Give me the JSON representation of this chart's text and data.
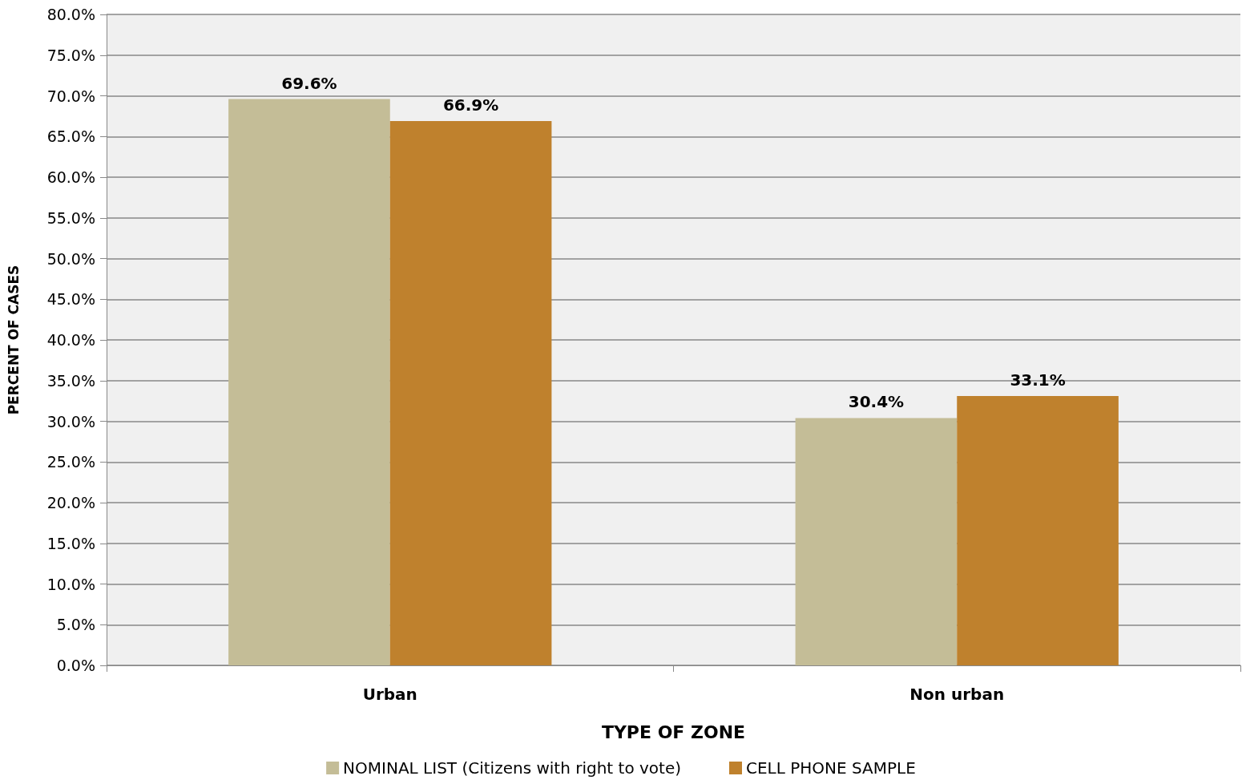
{
  "chart_data": {
    "type": "bar",
    "xlabel": "TYPE OF ZONE",
    "ylabel": "PERCENT OF CASES",
    "categories": [
      "Urban",
      "Non urban"
    ],
    "series": [
      {
        "name": "NOMINAL LIST (Citizens with right to vote)",
        "color": "#c4bd97",
        "values": [
          69.6,
          30.4
        ],
        "value_labels": [
          "69.6%",
          "30.4%"
        ]
      },
      {
        "name": "CELL PHONE SAMPLE",
        "color": "#bf812d",
        "values": [
          66.9,
          33.1
        ],
        "value_labels": [
          "66.9%",
          "33.1%"
        ]
      }
    ],
    "ylim": [
      0,
      80
    ],
    "yticks": [
      {
        "value": 0,
        "label": "0.0%"
      },
      {
        "value": 5,
        "label": "5.0%"
      },
      {
        "value": 10,
        "label": "10.0%"
      },
      {
        "value": 15,
        "label": "15.0%"
      },
      {
        "value": 20,
        "label": "20.0%"
      },
      {
        "value": 25,
        "label": "25.0%"
      },
      {
        "value": 30,
        "label": "30.0%"
      },
      {
        "value": 35,
        "label": "35.0%"
      },
      {
        "value": 40,
        "label": "40.0%"
      },
      {
        "value": 45,
        "label": "45.0%"
      },
      {
        "value": 50,
        "label": "50.0%"
      },
      {
        "value": 55,
        "label": "55.0%"
      },
      {
        "value": 60,
        "label": "60.0%"
      },
      {
        "value": 65,
        "label": "65.0%"
      },
      {
        "value": 70,
        "label": "70.0%"
      },
      {
        "value": 75,
        "label": "75.0%"
      },
      {
        "value": 80,
        "label": "80.0%"
      }
    ],
    "grid": "y",
    "legend": "bottom"
  }
}
